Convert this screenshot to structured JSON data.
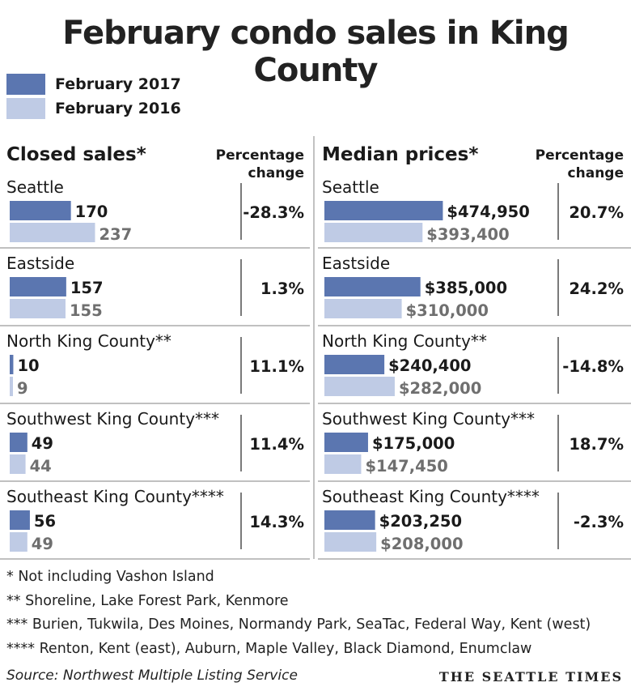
{
  "title": "February condo sales in King County",
  "legend": [
    {
      "label": "February 2017",
      "color": "#5b76b0"
    },
    {
      "label": "February 2016",
      "color": "#bfcbe5"
    }
  ],
  "colors": {
    "current": "#5b76b0",
    "previous": "#bfcbe5",
    "prev_text": "#6f6f6f",
    "divider": "#9a9a9a"
  },
  "chart_data": [
    {
      "type": "bar",
      "title": "Closed sales*",
      "change_header": [
        "Percentage",
        "change"
      ],
      "series": [
        {
          "name": "February 2017",
          "values": [
            170,
            157,
            10,
            49,
            56
          ]
        },
        {
          "name": "February 2016",
          "values": [
            237,
            155,
            9,
            44,
            49
          ]
        }
      ],
      "categories": [
        "Seattle",
        "Eastside",
        "North King County**",
        "Southwest King County***",
        "Southeast King County****"
      ],
      "value_labels_2017": [
        "170",
        "157",
        "10",
        "49",
        "56"
      ],
      "value_labels_2016": [
        "237",
        "155",
        "9",
        "44",
        "49"
      ],
      "pct_change": [
        "-28.3%",
        "1.3%",
        "11.1%",
        "11.4%",
        "14.3%"
      ]
    },
    {
      "type": "bar",
      "title": "Median prices*",
      "change_header": [
        "Percentage",
        "change"
      ],
      "series": [
        {
          "name": "February 2017",
          "values": [
            474950,
            385000,
            240400,
            175000,
            203250
          ]
        },
        {
          "name": "February 2016",
          "values": [
            393400,
            310000,
            282000,
            147450,
            208000
          ]
        }
      ],
      "categories": [
        "Seattle",
        "Eastside",
        "North King County**",
        "Southwest King County***",
        "Southeast King County****"
      ],
      "value_labels_2017": [
        "$474,950",
        "$385,000",
        "$240,400",
        "$175,000",
        "$203,250"
      ],
      "value_labels_2016": [
        "$393,400",
        "$310,000",
        "$282,000",
        "$147,450",
        "$208,000"
      ],
      "pct_change": [
        "20.7%",
        "24.2%",
        "-14.8%",
        "18.7%",
        "-2.3%"
      ]
    }
  ],
  "footnotes": [
    "* Not including Vashon Island",
    "**  Shoreline, Lake Forest Park, Kenmore",
    "*** Burien, Tukwila, Des Moines, Normandy Park, SeaTac, Federal Way, Kent (west)",
    "**** Renton, Kent (east), Auburn, Maple Valley, Black Diamond, Enumclaw"
  ],
  "source": "Source: Northwest Multiple Listing Service",
  "brand": "THE SEATTLE TIMES"
}
